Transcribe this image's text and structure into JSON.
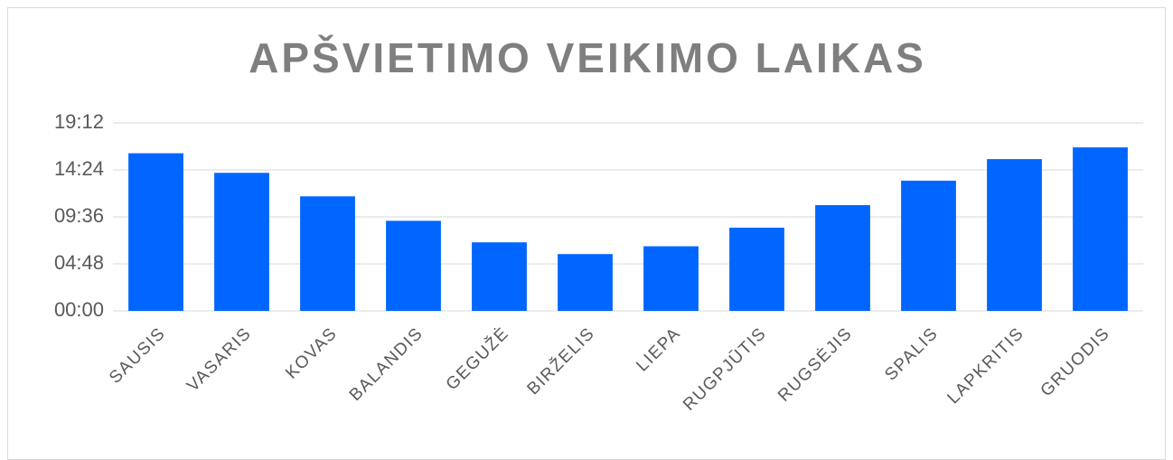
{
  "chart_data": {
    "type": "bar",
    "title": "APŠVIETIMO VEIKIMO LAIKAS",
    "categories": [
      "SAUSIS",
      "VASARIS",
      "KOVAS",
      "BALANDIS",
      "GEGUŽĖ",
      "BIRŽELIS",
      "LIEPA",
      "RUGPJŪTIS",
      "RUGSĖJIS",
      "SPALIS",
      "LAPKRITIS",
      "GRUODIS"
    ],
    "values": [
      16.1,
      14.1,
      11.7,
      9.2,
      7.0,
      5.8,
      6.6,
      8.5,
      10.8,
      13.3,
      15.5,
      16.7
    ],
    "color": "#0066ff",
    "ylim": [
      0,
      19.2
    ],
    "yticks": [
      {
        "value": 0,
        "label": "00:00"
      },
      {
        "value": 4.8,
        "label": "04:48"
      },
      {
        "value": 9.6,
        "label": "09:36"
      },
      {
        "value": 14.4,
        "label": "14:24"
      },
      {
        "value": 19.2,
        "label": "19:12"
      }
    ],
    "grid": true
  }
}
